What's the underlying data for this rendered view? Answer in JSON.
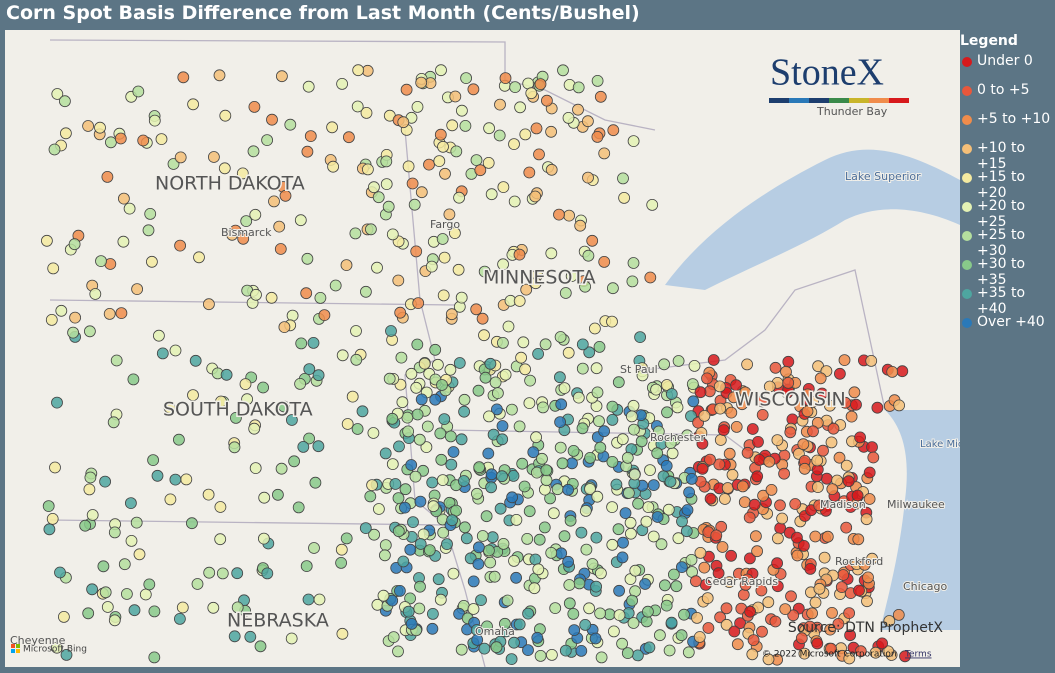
{
  "header": {
    "title": "Corn Spot Basis Difference from Last Month (Cents/Bushel)"
  },
  "legend": {
    "title": "Legend",
    "items": [
      {
        "label": "Under 0",
        "color": "#d7191c"
      },
      {
        "label": "0 to +5",
        "color": "#e9573b"
      },
      {
        "label": "+5 to +10",
        "color": "#f08c4b"
      },
      {
        "label": "+10 to +15",
        "color": "#f5bf78"
      },
      {
        "label": "+15 to +20",
        "color": "#f4eaa0"
      },
      {
        "label": "+20 to +25",
        "color": "#e4f2b4"
      },
      {
        "label": "+25 to +30",
        "color": "#b5df9e"
      },
      {
        "label": "+30 to +35",
        "color": "#88c98a"
      },
      {
        "label": "+35 to +40",
        "color": "#4ea6a0"
      },
      {
        "label": "Over +40",
        "color": "#2a79b8"
      }
    ]
  },
  "map": {
    "states": [
      "NORTH DAKOTA",
      "SOUTH DAKOTA",
      "MINNESOTA",
      "WISCONSIN",
      "NEBRASKA"
    ],
    "places": [
      "Bismarck",
      "Fargo",
      "St Paul",
      "Rochester",
      "Thunder Bay",
      "Lake Superior",
      "Lake Michigan",
      "Milwaukee",
      "Chicago",
      "Cheyenne",
      "Cedar Rapids",
      "Rockford",
      "Omaha",
      "Madison"
    ],
    "logo": "StoneX",
    "source": "Source: DTN ProphetX",
    "copyright": "© 2022 Microsoft Corporation",
    "terms": "Terms",
    "provider": "Microsoft Bing"
  }
}
